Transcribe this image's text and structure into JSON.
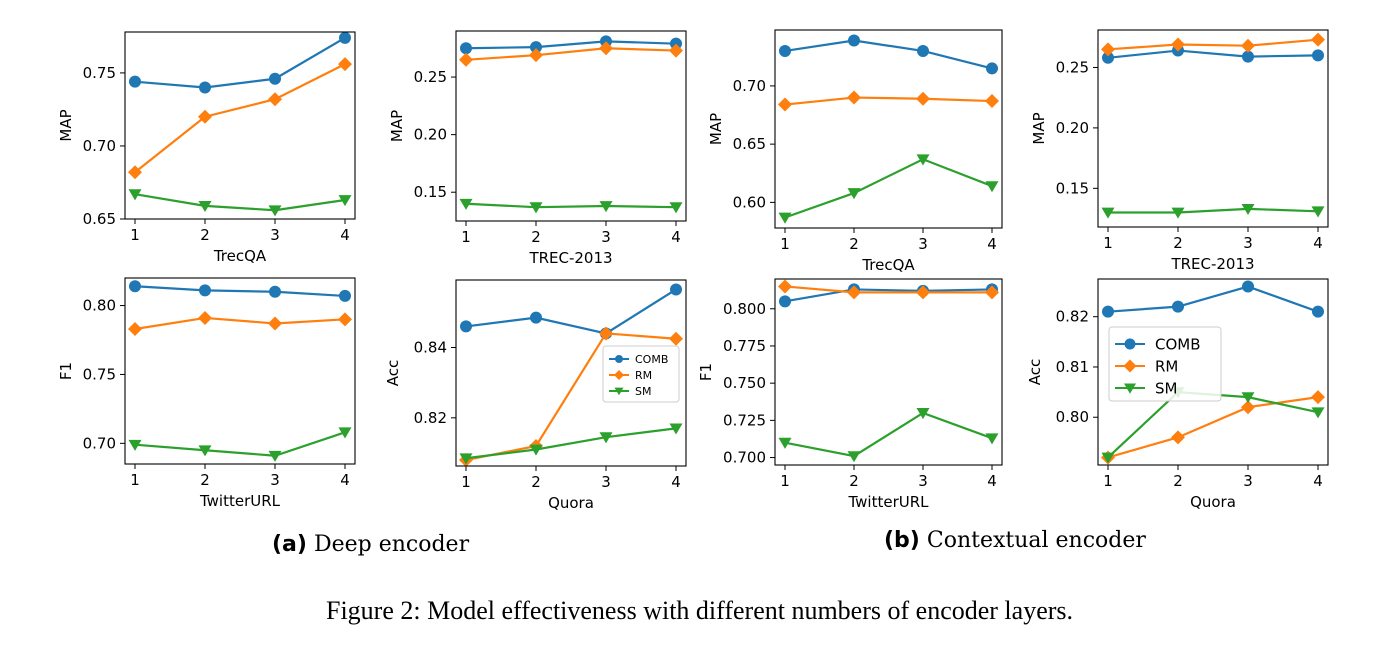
{
  "figure": {
    "caption": "Figure 2: Model effectiveness with different numbers of encoder layers.",
    "subcaptions": [
      {
        "tag": "(a)",
        "text": "Deep encoder"
      },
      {
        "tag": "(b)",
        "text": "Contextual encoder"
      }
    ]
  },
  "colors": {
    "COMB": "#1f77b4",
    "RM": "#ff7f0e",
    "SM": "#2ca02c"
  },
  "chart_data": [
    {
      "type": "line",
      "xlabel": "TrecQA",
      "ylabel": "MAP",
      "x": [
        1,
        2,
        3,
        4
      ],
      "xticks": [
        "1",
        "2",
        "3",
        "4"
      ],
      "ylim": [
        0.65,
        0.778
      ],
      "yticks": [
        0.65,
        0.7,
        0.75
      ],
      "ytick_labels": [
        "0.65",
        "0.70",
        "0.75"
      ],
      "series": [
        {
          "name": "COMB",
          "values": [
            0.744,
            0.74,
            0.746,
            0.774
          ]
        },
        {
          "name": "RM",
          "values": [
            0.682,
            0.72,
            0.732,
            0.756
          ]
        },
        {
          "name": "SM",
          "values": [
            0.667,
            0.659,
            0.656,
            0.663
          ]
        }
      ]
    },
    {
      "type": "line",
      "xlabel": "TREC-2013",
      "ylabel": "MAP",
      "x": [
        1,
        2,
        3,
        4
      ],
      "xticks": [
        "1",
        "2",
        "3",
        "4"
      ],
      "ylim": [
        0.125,
        0.29
      ],
      "yticks": [
        0.15,
        0.2,
        0.25
      ],
      "ytick_labels": [
        "0.15",
        "0.20",
        "0.25"
      ],
      "series": [
        {
          "name": "COMB",
          "values": [
            0.275,
            0.276,
            0.281,
            0.279
          ]
        },
        {
          "name": "RM",
          "values": [
            0.265,
            0.269,
            0.275,
            0.273
          ]
        },
        {
          "name": "SM",
          "values": [
            0.14,
            0.137,
            0.138,
            0.137
          ]
        }
      ]
    },
    {
      "type": "line",
      "xlabel": "TrecQA",
      "ylabel": "MAP",
      "x": [
        1,
        2,
        3,
        4
      ],
      "xticks": [
        "1",
        "2",
        "3",
        "4"
      ],
      "ylim": [
        0.578,
        0.748
      ],
      "yticks": [
        0.6,
        0.65,
        0.7
      ],
      "ytick_labels": [
        "0.60",
        "0.65",
        "0.70"
      ],
      "series": [
        {
          "name": "COMB",
          "values": [
            0.73,
            0.739,
            0.73,
            0.715
          ]
        },
        {
          "name": "RM",
          "values": [
            0.684,
            0.69,
            0.689,
            0.687
          ]
        },
        {
          "name": "SM",
          "values": [
            0.587,
            0.608,
            0.637,
            0.614
          ]
        }
      ]
    },
    {
      "type": "line",
      "xlabel": "TREC-2013",
      "ylabel": "MAP",
      "x": [
        1,
        2,
        3,
        4
      ],
      "xticks": [
        "1",
        "2",
        "3",
        "4"
      ],
      "ylim": [
        0.118,
        0.281
      ],
      "yticks": [
        0.15,
        0.2,
        0.25
      ],
      "ytick_labels": [
        "0.15",
        "0.20",
        "0.25"
      ],
      "series": [
        {
          "name": "COMB",
          "values": [
            0.258,
            0.264,
            0.259,
            0.26
          ]
        },
        {
          "name": "RM",
          "values": [
            0.265,
            0.269,
            0.268,
            0.273
          ]
        },
        {
          "name": "SM",
          "values": [
            0.13,
            0.13,
            0.133,
            0.131
          ]
        }
      ]
    },
    {
      "type": "line",
      "xlabel": "TwitterURL",
      "ylabel": "F1",
      "x": [
        1,
        2,
        3,
        4
      ],
      "xticks": [
        "1",
        "2",
        "3",
        "4"
      ],
      "ylim": [
        0.685,
        0.82
      ],
      "yticks": [
        0.7,
        0.75,
        0.8
      ],
      "ytick_labels": [
        "0.70",
        "0.75",
        "0.80"
      ],
      "series": [
        {
          "name": "COMB",
          "values": [
            0.814,
            0.811,
            0.81,
            0.807
          ]
        },
        {
          "name": "RM",
          "values": [
            0.783,
            0.791,
            0.787,
            0.79
          ]
        },
        {
          "name": "SM",
          "values": [
            0.699,
            0.695,
            0.691,
            0.708
          ]
        }
      ]
    },
    {
      "type": "line",
      "xlabel": "Quora",
      "ylabel": "Acc",
      "x": [
        1,
        2,
        3,
        4
      ],
      "xticks": [
        "1",
        "2",
        "3",
        "4"
      ],
      "ylim": [
        0.8063,
        0.8592
      ],
      "yticks": [
        0.82,
        0.84
      ],
      "ytick_labels": [
        "0.82",
        "0.84"
      ],
      "legend": {
        "position": "center-right",
        "entries": [
          "COMB",
          "RM",
          "SM"
        ]
      },
      "series": [
        {
          "name": "COMB",
          "values": [
            0.846,
            0.8485,
            0.844,
            0.8565
          ]
        },
        {
          "name": "RM",
          "values": [
            0.808,
            0.812,
            0.844,
            0.8425
          ]
        },
        {
          "name": "SM",
          "values": [
            0.8085,
            0.811,
            0.8145,
            0.817
          ]
        }
      ]
    },
    {
      "type": "line",
      "xlabel": "TwitterURL",
      "ylabel": "F1",
      "x": [
        1,
        2,
        3,
        4
      ],
      "xticks": [
        "1",
        "2",
        "3",
        "4"
      ],
      "ylim": [
        0.695,
        0.82
      ],
      "yticks": [
        0.7,
        0.725,
        0.75,
        0.775,
        0.8
      ],
      "ytick_labels": [
        "0.700",
        "0.725",
        "0.750",
        "0.775",
        "0.800"
      ],
      "series": [
        {
          "name": "COMB",
          "values": [
            0.805,
            0.813,
            0.812,
            0.813
          ]
        },
        {
          "name": "RM",
          "values": [
            0.815,
            0.811,
            0.811,
            0.811
          ]
        },
        {
          "name": "SM",
          "values": [
            0.71,
            0.701,
            0.73,
            0.713
          ]
        }
      ]
    },
    {
      "type": "line",
      "xlabel": "Quora",
      "ylabel": "Acc",
      "x": [
        1,
        2,
        3,
        4
      ],
      "xticks": [
        "1",
        "2",
        "3",
        "4"
      ],
      "ylim": [
        0.7905,
        0.8275
      ],
      "yticks": [
        0.8,
        0.81,
        0.82
      ],
      "ytick_labels": [
        "0.80",
        "0.81",
        "0.82"
      ],
      "legend": {
        "position": "center-left",
        "entries": [
          "COMB",
          "RM",
          "SM"
        ]
      },
      "series": [
        {
          "name": "COMB",
          "values": [
            0.821,
            0.822,
            0.826,
            0.821
          ]
        },
        {
          "name": "RM",
          "values": [
            0.792,
            0.796,
            0.802,
            0.804
          ]
        },
        {
          "name": "SM",
          "values": [
            0.792,
            0.805,
            0.804,
            0.801
          ]
        }
      ]
    }
  ]
}
